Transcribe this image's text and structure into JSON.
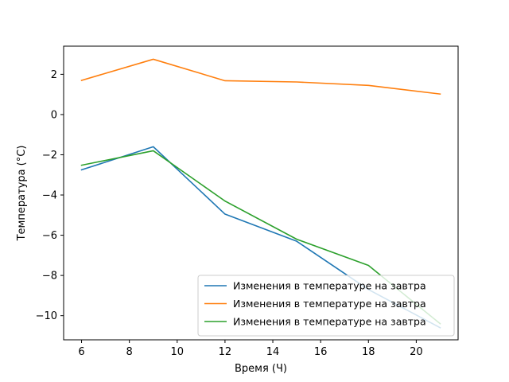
{
  "chart_data": {
    "type": "line",
    "title": "",
    "xlabel": "Время (Ч)",
    "ylabel": "Температура (°C)",
    "xlim": [
      5.25,
      21.75
    ],
    "ylim": [
      -11.2,
      3.4
    ],
    "xticks": [
      6,
      8,
      10,
      12,
      14,
      16,
      18,
      20
    ],
    "yticks": [
      -10,
      -8,
      -6,
      -4,
      -2,
      0,
      2
    ],
    "x": [
      6,
      9,
      12,
      15,
      18,
      21
    ],
    "grid": false,
    "legend_position": "lower-right",
    "series": [
      {
        "name": "Изменения в температуре на завтра",
        "color": "#1f77b4",
        "values": [
          -2.75,
          -1.6,
          -4.95,
          -6.3,
          -8.7,
          -10.6
        ]
      },
      {
        "name": "Изменения в температуре на завтра",
        "color": "#ff7f0e",
        "values": [
          1.7,
          2.75,
          1.68,
          1.62,
          1.45,
          1.02
        ]
      },
      {
        "name": "Изменения в температуре на завтра",
        "color": "#2ca02c",
        "values": [
          -2.52,
          -1.8,
          -4.3,
          -6.2,
          -7.5,
          -10.4
        ]
      }
    ]
  }
}
